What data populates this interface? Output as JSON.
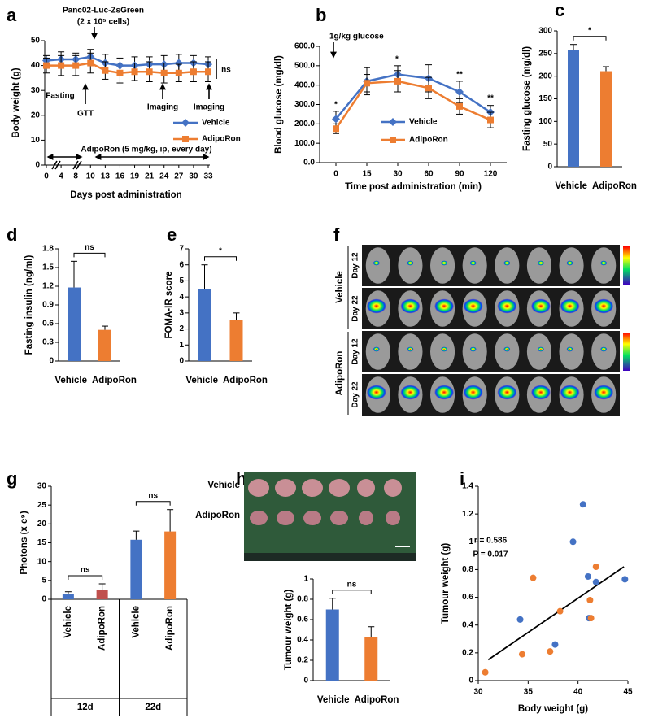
{
  "chart_data": [
    {
      "label": "a",
      "type": "line",
      "ylabel": "Body weight (g)",
      "xlabel": "Days post administration",
      "categories": [
        0,
        4,
        8,
        10,
        13,
        16,
        19,
        21,
        24,
        27,
        30,
        33
      ],
      "ylim": [
        0,
        50
      ],
      "yticks": [
        0,
        10,
        20,
        30,
        40,
        50
      ],
      "series": [
        {
          "name": "Vehicle",
          "color": "#4472c4",
          "marker": "diamond",
          "values": [
            42,
            42.5,
            42.5,
            43.5,
            41,
            40,
            40,
            40.5,
            40.5,
            41,
            41,
            40.5
          ],
          "errors": [
            2,
            3,
            2.5,
            3,
            3.5,
            3,
            3.5,
            3,
            3.5,
            3.5,
            3,
            3
          ]
        },
        {
          "name": "AdipoRon",
          "color": "#ed7d31",
          "marker": "square",
          "values": [
            40,
            40,
            40,
            41,
            38,
            37,
            37.5,
            37.5,
            37,
            37,
            37.5,
            37.5
          ],
          "errors": [
            3,
            4,
            4,
            4,
            3.5,
            4,
            3.5,
            4,
            4,
            3.5,
            4,
            4
          ]
        }
      ],
      "annotations": [
        "Panc02-Luc-ZsGreen",
        "(2 x 10⁵ cells)",
        "Fasting",
        "GTT",
        "Imaging",
        "Imaging",
        "ns",
        "AdipoRon (5 mg/kg, ip, every day)"
      ]
    },
    {
      "label": "b",
      "type": "line",
      "ylabel": "Blood glucose (mg/dl)",
      "xlabel": "Time post administration (min)",
      "categories": [
        0,
        15,
        30,
        60,
        90,
        120
      ],
      "ylim": [
        0,
        600
      ],
      "yticks": [
        {
          "value": 0,
          "label": "0.0"
        },
        {
          "value": 100,
          "label": "100.0"
        },
        {
          "value": 200,
          "label": "200.0"
        },
        {
          "value": 300,
          "label": "300.0"
        },
        {
          "value": 400,
          "label": "400.0"
        },
        {
          "value": 500,
          "label": "500.0"
        },
        {
          "value": 600,
          "label": "600.0"
        }
      ],
      "series": [
        {
          "name": "Vehicle",
          "color": "#4472c4",
          "marker": "diamond",
          "values": [
            225,
            420,
            455,
            435,
            365,
            260
          ],
          "errors": [
            40,
            70,
            45,
            70,
            55,
            35
          ]
        },
        {
          "name": "AdipoRon",
          "color": "#ed7d31",
          "marker": "square",
          "values": [
            175,
            410,
            420,
            385,
            290,
            220
          ],
          "errors": [
            25,
            45,
            55,
            55,
            40,
            40
          ]
        }
      ],
      "annotations": [
        "1g/kg glucose",
        "*",
        "*",
        "**",
        "**"
      ]
    },
    {
      "label": "c",
      "type": "bar",
      "ylabel": "Fasting glucose (mg/dl)",
      "categories": [
        "Vehicle",
        "AdipoRon"
      ],
      "values": [
        258,
        211
      ],
      "errors": [
        12,
        10
      ],
      "colors": [
        "#4472c4",
        "#ed7d31"
      ],
      "ylim": [
        0,
        300
      ],
      "yticks": [
        0,
        50,
        100,
        150,
        200,
        250,
        300
      ],
      "annotations": [
        "*"
      ]
    },
    {
      "label": "d",
      "type": "bar",
      "ylabel": "Fasting insulin (ng/ml)",
      "categories": [
        "Vehicle",
        "AdipoRon"
      ],
      "values": [
        1.18,
        0.5
      ],
      "errors": [
        0.42,
        0.06
      ],
      "colors": [
        "#4472c4",
        "#ed7d31"
      ],
      "ylim": [
        0,
        1.8
      ],
      "yticks": [
        0,
        0.3,
        0.6,
        0.9,
        1.2,
        1.5,
        1.8
      ],
      "annotations": [
        "ns"
      ]
    },
    {
      "label": "e",
      "type": "bar",
      "ylabel": "FOMA-IR score",
      "categories": [
        "Vehicle",
        "AdipoRon"
      ],
      "values": [
        4.5,
        2.55
      ],
      "errors": [
        1.5,
        0.45
      ],
      "colors": [
        "#4472c4",
        "#ed7d31"
      ],
      "ylim": [
        0,
        7
      ],
      "yticks": [
        0,
        1,
        2,
        3,
        4,
        5,
        6,
        7
      ],
      "annotations": [
        "*"
      ]
    },
    {
      "label": "f",
      "type": "image",
      "groups": [
        "Vehicle",
        "AdipoRon"
      ],
      "rows": [
        "Day 12",
        "Day 22",
        "Day 12",
        "Day 22"
      ]
    },
    {
      "label": "g",
      "type": "bar",
      "ylabel": "Photons (x e⁹)",
      "categories": [
        "Vehicle",
        "AdipoRon",
        "Vehicle",
        "AdipoRon"
      ],
      "groups": [
        "12d",
        "22d"
      ],
      "values": [
        1.4,
        2.5,
        15.8,
        18
      ],
      "errors": [
        0.6,
        1.6,
        2.3,
        5.8
      ],
      "colors": [
        "#4472c4",
        "#c0504d",
        "#4472c4",
        "#ed7d31"
      ],
      "ylim": [
        0,
        30
      ],
      "yticks": [
        0,
        5,
        10,
        15,
        20,
        25,
        30
      ],
      "annotations": [
        "ns",
        "ns"
      ]
    },
    {
      "label": "h",
      "type": "bar",
      "ylabel": "Tumour weight (g)",
      "photo_labels": [
        "Vehicle",
        "AdipoRon"
      ],
      "categories": [
        "Vehicle",
        "AdipoRon"
      ],
      "values": [
        0.7,
        0.43
      ],
      "errors": [
        0.11,
        0.1
      ],
      "colors": [
        "#4472c4",
        "#ed7d31"
      ],
      "ylim": [
        0,
        1
      ],
      "yticks": [
        0,
        0.2,
        0.4,
        0.6,
        0.8,
        1
      ],
      "annotations": [
        "ns"
      ]
    },
    {
      "label": "i",
      "type": "scatter",
      "ylabel": "Tumour weight (g)",
      "xlabel": "Body weight (g)",
      "xlim": [
        30,
        45
      ],
      "xticks": [
        30,
        35,
        40,
        45
      ],
      "ylim": [
        0,
        1.4
      ],
      "yticks": [
        0,
        0.2,
        0.4,
        0.6,
        0.8,
        1,
        1.2,
        1.4
      ],
      "series": [
        {
          "color": "#4472c4",
          "x": [
            34.2,
            37.7,
            39.5,
            40.5,
            41,
            41.1,
            41.8,
            44.7
          ],
          "values": [
            0.44,
            0.26,
            1.0,
            1.27,
            0.75,
            0.45,
            0.71,
            0.73
          ]
        },
        {
          "color": "#ed7d31",
          "x": [
            30.7,
            34.4,
            35.5,
            37.2,
            38.2,
            41.2,
            41.3,
            41.8
          ],
          "values": [
            0.06,
            0.19,
            0.74,
            0.21,
            0.5,
            0.58,
            0.45,
            0.82
          ]
        }
      ],
      "trendline": {
        "x": [
          31,
          44.6
        ],
        "values": [
          0.15,
          0.82
        ]
      },
      "annotations": [
        "r = 0.586",
        "P = 0.017"
      ]
    }
  ]
}
